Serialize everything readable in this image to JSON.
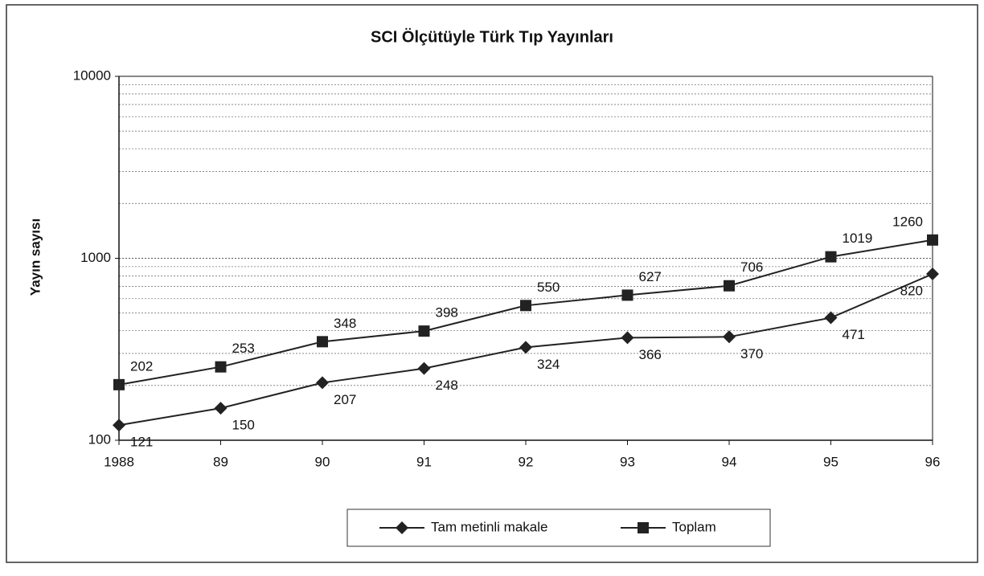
{
  "chart_data": {
    "type": "line",
    "title": "SCI Ölçütüyle Türk Tıp Yayınları",
    "y_label": "Yayın sayısı",
    "categories": [
      "1988",
      "89",
      "90",
      "91",
      "92",
      "93",
      "94",
      "95",
      "96"
    ],
    "series": [
      {
        "name": "Tam metinli makale",
        "color": "#222222",
        "marker": "diamond",
        "values": [
          121,
          150,
          207,
          248,
          324,
          366,
          370,
          471,
          820
        ]
      },
      {
        "name": "Toplam",
        "color": "#222222",
        "marker": "square",
        "values": [
          202,
          253,
          348,
          398,
          550,
          627,
          706,
          1019,
          1260
        ]
      }
    ],
    "ylim": [
      100,
      10000
    ],
    "yticks": [
      100,
      1000,
      10000
    ],
    "log_scale": true,
    "grid": true,
    "minor_grid": true
  }
}
